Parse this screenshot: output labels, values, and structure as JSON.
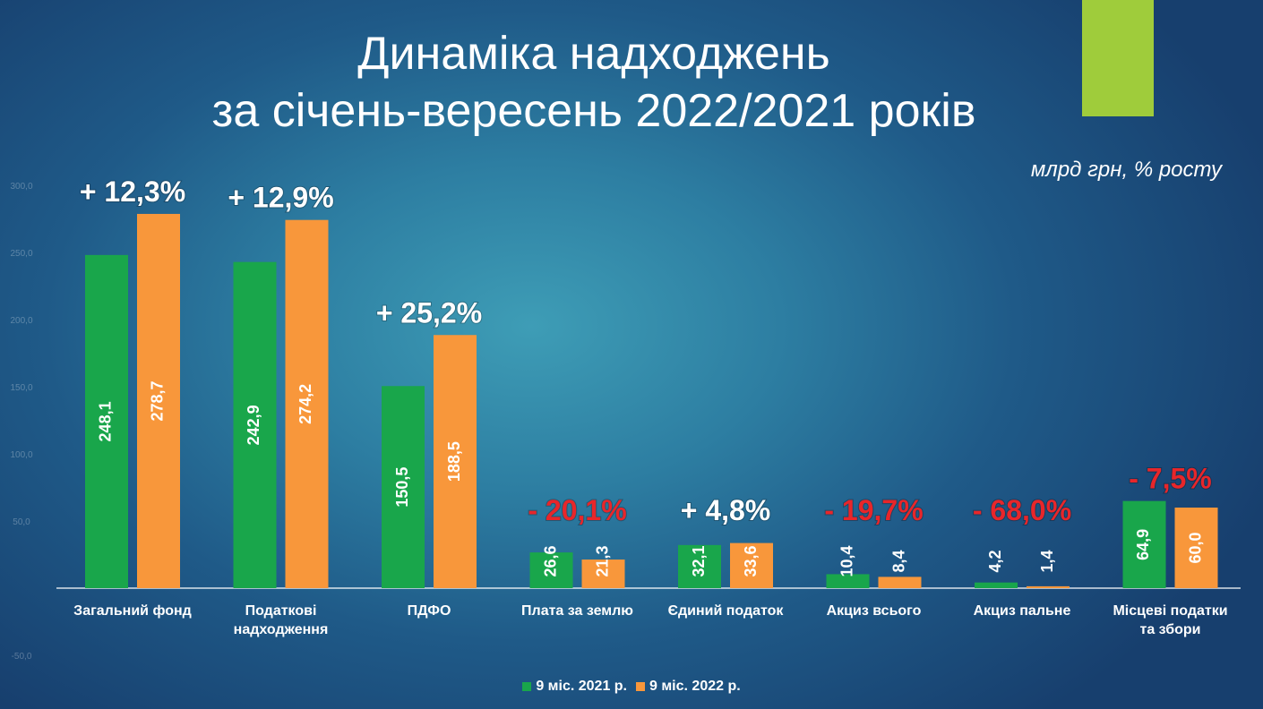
{
  "slide": {
    "title_line1": "Динаміка надходжень",
    "title_line2": "за січень-вересень 2022/2021 років",
    "units": "млрд грн, % росту",
    "accent_color": "#9fcc3b"
  },
  "chart_data": {
    "type": "bar",
    "title": "Динаміка надходжень за січень-вересень 2022/2021 років",
    "ylabel": "млрд грн",
    "ylim": [
      -50,
      300
    ],
    "yticks": [
      "-50,0",
      "50,0",
      "100,0",
      "150,0",
      "200,0",
      "250,0",
      "300,0"
    ],
    "ytick_values": [
      -50,
      50,
      100,
      150,
      200,
      250,
      300
    ],
    "grid": false,
    "legend_position": "bottom",
    "categories": [
      "Загальний фонд",
      "Податкові надходження",
      "ПДФО",
      "Плата за землю",
      "Єдиний податок",
      "Акциз всього",
      "Акциз пальне",
      "Місцеві податки та збори"
    ],
    "category_lines": [
      [
        "Загальний фонд"
      ],
      [
        "Податкові",
        "надходження"
      ],
      [
        "ПДФО"
      ],
      [
        "Плата за землю"
      ],
      [
        "Єдиний податок"
      ],
      [
        "Акциз всього"
      ],
      [
        "Акциз пальне"
      ],
      [
        "Місцеві податки",
        "та збори"
      ]
    ],
    "series": [
      {
        "name": "9 міс. 2021 р.",
        "color": "#19a64b",
        "values": [
          248.1,
          242.9,
          150.5,
          26.6,
          32.1,
          10.4,
          4.2,
          64.9
        ],
        "labels": [
          "248,1",
          "242,9",
          "150,5",
          "26,6",
          "32,1",
          "10,4",
          "4,2",
          "64,9"
        ]
      },
      {
        "name": "9 міс. 2022 р.",
        "color": "#f8973b",
        "values": [
          278.7,
          274.2,
          188.5,
          21.3,
          33.6,
          8.4,
          1.4,
          60.0
        ],
        "labels": [
          "278,7",
          "274,2",
          "188,5",
          "21,3",
          "33,6",
          "8,4",
          "1,4",
          "60,0"
        ]
      }
    ],
    "growth": [
      {
        "text": "+ 12,3%",
        "positive": true
      },
      {
        "text": "+ 12,9%",
        "positive": true
      },
      {
        "text": "+ 25,2%",
        "positive": true
      },
      {
        "text": "- 20,1%",
        "positive": false
      },
      {
        "text": "+ 4,8%",
        "positive": true
      },
      {
        "text": "- 19,7%",
        "positive": false
      },
      {
        "text": "- 68,0%",
        "positive": false
      },
      {
        "text": "- 7,5%",
        "positive": false
      }
    ],
    "growth_colors": {
      "positive": "#ffffff",
      "negative": "#e8262a"
    }
  }
}
